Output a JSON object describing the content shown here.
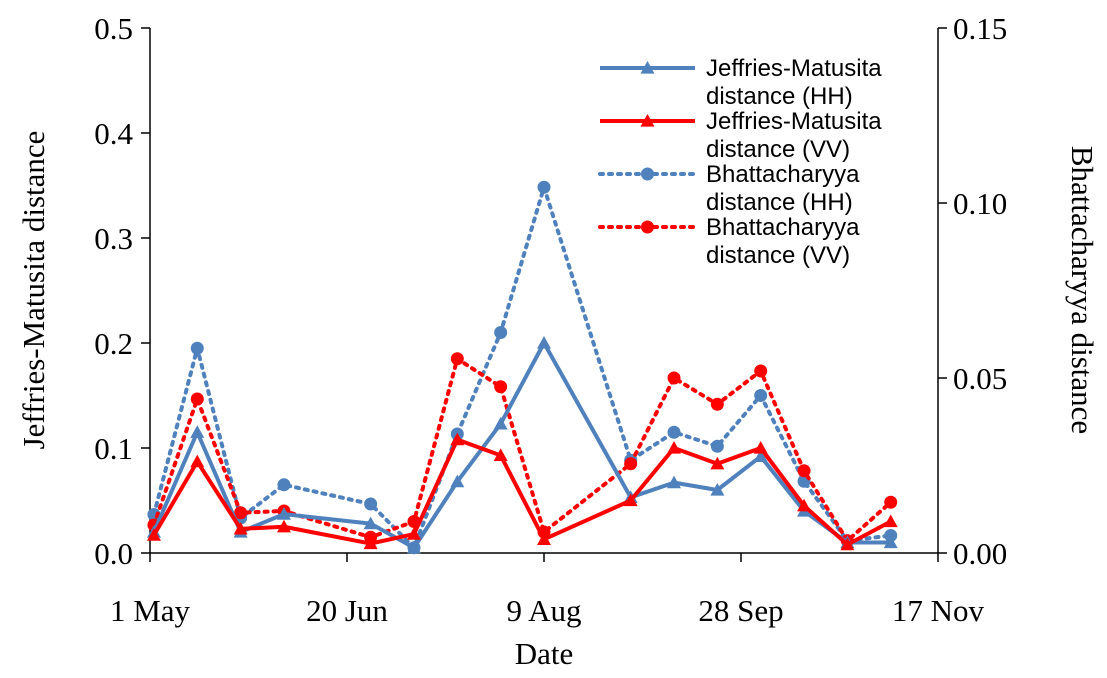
{
  "chart_data": {
    "type": "line",
    "xlabel": "Date",
    "ylabel": "Jeffries-Matusita distance",
    "y2label": "Bhattacharyya distance",
    "x_ticks": [
      "1 May",
      "20 Jun",
      "9 Aug",
      "28 Sep",
      "17 Nov"
    ],
    "x_tick_days": [
      0,
      50,
      100,
      150,
      200
    ],
    "xlim_days": [
      0,
      200
    ],
    "ylim": [
      0,
      0.5
    ],
    "y_ticks": [
      "0.0",
      "0.1",
      "0.2",
      "0.3",
      "0.4",
      "0.5"
    ],
    "y2lim": [
      0,
      0.15
    ],
    "y2_ticks": [
      "0.00",
      "0.05",
      "0.10",
      "0.15"
    ],
    "grid": false,
    "legend_position": "top-right",
    "series": [
      {
        "name": "Jeffries-Matusita distance (HH)",
        "legend_lines": [
          "Jeffries-Matusita",
          "distance (HH)"
        ],
        "axis": "left",
        "color": "#4f81bd",
        "line_style": "solid",
        "marker": "triangle",
        "x_days": [
          1,
          12,
          23,
          34,
          56,
          67,
          78,
          89,
          100,
          122,
          133,
          144,
          155,
          166,
          177,
          188
        ],
        "values": [
          0.02,
          0.115,
          0.02,
          0.037,
          0.028,
          0.005,
          0.068,
          0.123,
          0.2,
          0.053,
          0.067,
          0.06,
          0.092,
          0.04,
          0.01,
          0.01
        ]
      },
      {
        "name": "Jeffries-Matusita distance (VV)",
        "legend_lines": [
          "Jeffries-Matusita",
          "distance (VV)"
        ],
        "axis": "left",
        "color": "#ff0000",
        "line_style": "solid",
        "marker": "triangle",
        "x_days": [
          1,
          12,
          23,
          34,
          56,
          67,
          78,
          89,
          100,
          122,
          133,
          144,
          155,
          166,
          177,
          188
        ],
        "values": [
          0.017,
          0.087,
          0.023,
          0.025,
          0.009,
          0.018,
          0.108,
          0.093,
          0.013,
          0.05,
          0.1,
          0.085,
          0.1,
          0.045,
          0.008,
          0.03
        ]
      },
      {
        "name": "Bhattacharyya distance (HH)",
        "legend_lines": [
          "Bhattacharyya",
          "distance (HH)"
        ],
        "axis": "right",
        "color": "#4f81bd",
        "line_style": "dotted",
        "marker": "circle",
        "x_days": [
          1,
          12,
          23,
          34,
          56,
          67,
          78,
          89,
          100,
          122,
          133,
          144,
          155,
          166,
          177,
          188
        ],
        "values": [
          0.011,
          0.0585,
          0.01,
          0.0195,
          0.014,
          0.0015,
          0.034,
          0.063,
          0.1045,
          0.0265,
          0.0345,
          0.0305,
          0.045,
          0.0205,
          0.0035,
          0.005
        ]
      },
      {
        "name": "Bhattacharyya distance (VV)",
        "legend_lines": [
          "Bhattacharyya",
          "distance (VV)"
        ],
        "axis": "right",
        "color": "#ff0000",
        "line_style": "dotted",
        "marker": "circle",
        "x_days": [
          1,
          12,
          23,
          34,
          56,
          67,
          78,
          89,
          100,
          122,
          133,
          144,
          155,
          166,
          177,
          188
        ],
        "values": [
          0.008,
          0.044,
          0.0115,
          0.012,
          0.0045,
          0.009,
          0.0555,
          0.0475,
          0.006,
          0.0255,
          0.05,
          0.0425,
          0.052,
          0.0235,
          0.0035,
          0.0145
        ]
      }
    ]
  }
}
